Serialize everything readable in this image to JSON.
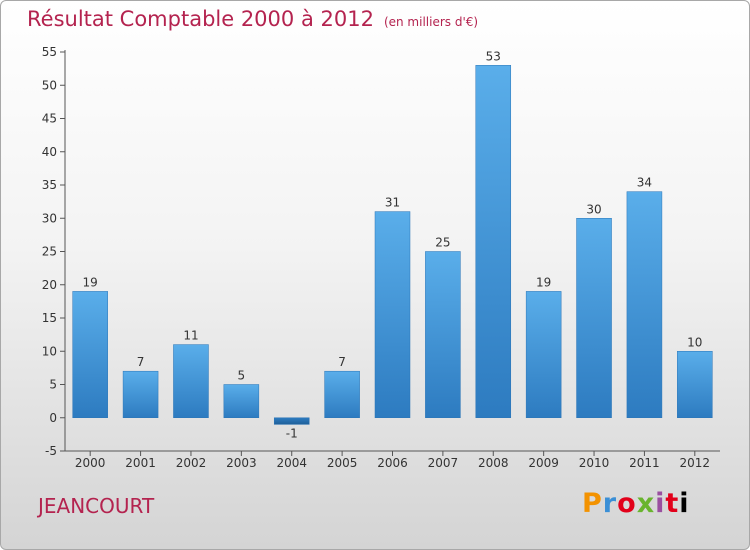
{
  "chart_data": {
    "type": "bar",
    "title": "Résultat Comptable 2000 à 2012",
    "subtitle": "(en milliers d'€)",
    "categories": [
      "2000",
      "2001",
      "2002",
      "2003",
      "2004",
      "2005",
      "2006",
      "2007",
      "2008",
      "2009",
      "2010",
      "2011",
      "2012"
    ],
    "values": [
      19,
      7,
      11,
      5,
      -1,
      7,
      31,
      25,
      53,
      19,
      30,
      34,
      10
    ],
    "value_labels": [
      "19",
      "7",
      "11",
      "5",
      "-1",
      "7",
      "31",
      "25",
      "53",
      "19",
      "30",
      "34",
      "10"
    ],
    "ylim": [
      -5,
      55
    ],
    "yticks": [
      -5,
      0,
      5,
      10,
      15,
      20,
      25,
      30,
      35,
      40,
      45,
      50,
      55
    ],
    "ytick_labels": [
      "-5",
      "0",
      "5",
      "10",
      "15",
      "20",
      "25",
      "30",
      "35",
      "40",
      "45",
      "50",
      "55"
    ],
    "xlabel": "",
    "ylabel": "",
    "grid": false,
    "bar_color": "#4a9fe0",
    "bar_color_dark": "#2c79bf"
  },
  "commune": "JEANCOURT",
  "logo": {
    "letters": [
      "P",
      "r",
      "o",
      "x",
      "i",
      "t",
      "i"
    ]
  },
  "colors": {
    "title": "#b4234f"
  }
}
